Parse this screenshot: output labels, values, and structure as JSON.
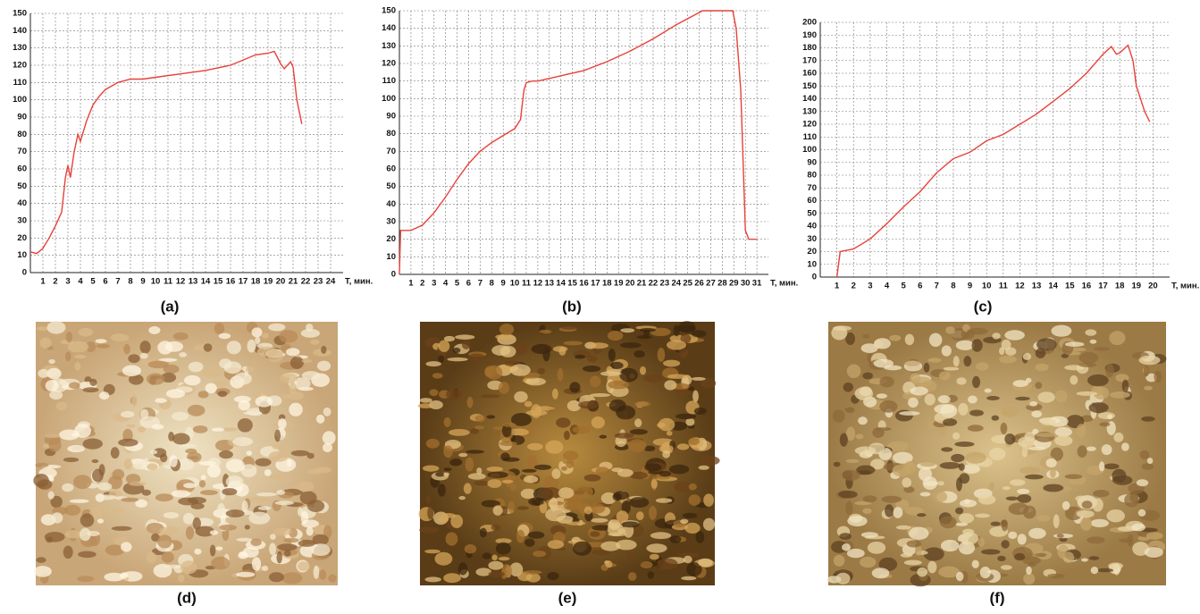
{
  "chart_data": [
    {
      "type": "line",
      "label": "(a)",
      "x_label": "T, мин.",
      "color": "#e8413a",
      "grid": true,
      "x": [
        0,
        0.5,
        1,
        1.5,
        2,
        2.5,
        2.8,
        3,
        3.2,
        3.5,
        3.8,
        4,
        4.5,
        5,
        5.5,
        6,
        7,
        8,
        9,
        10,
        12,
        14,
        16,
        18,
        19,
        19.5,
        20,
        20.3,
        20.8,
        21,
        21.3,
        21.7
      ],
      "values": [
        12,
        11,
        14,
        20,
        27,
        35,
        55,
        62,
        55,
        70,
        80,
        76,
        88,
        97,
        102,
        106,
        110,
        112,
        112,
        113,
        115,
        117,
        120,
        126,
        127,
        128,
        121,
        118,
        122,
        119,
        100,
        86
      ],
      "xlim": [
        0,
        25
      ],
      "xticks": [
        1,
        2,
        3,
        4,
        5,
        6,
        7,
        8,
        9,
        10,
        11,
        12,
        13,
        14,
        15,
        16,
        17,
        18,
        19,
        20,
        21,
        22,
        23,
        24
      ],
      "ylim": [
        0,
        150
      ],
      "yticks": [
        0,
        10,
        20,
        30,
        40,
        50,
        60,
        70,
        80,
        90,
        100,
        110,
        120,
        130,
        140,
        150
      ]
    },
    {
      "type": "line",
      "label": "(b)",
      "x_label": "T, мин.",
      "color": "#e8413a",
      "grid": true,
      "x": [
        0,
        0.1,
        1,
        2,
        3,
        4,
        5,
        6,
        7,
        8,
        9,
        10,
        10.5,
        10.8,
        11,
        11.5,
        12,
        14,
        16,
        18,
        20,
        22,
        24,
        26.3,
        28.9,
        29.2,
        29.6,
        30,
        30.3,
        31
      ],
      "values": [
        0,
        25,
        25,
        28,
        35,
        44,
        54,
        63,
        70,
        75,
        79,
        83,
        88,
        105,
        109,
        110,
        110,
        113,
        116,
        121,
        127,
        134,
        142,
        150,
        150,
        140,
        105,
        25,
        20,
        20
      ],
      "xlim": [
        0,
        32
      ],
      "xticks": [
        1,
        2,
        3,
        4,
        5,
        6,
        7,
        8,
        9,
        10,
        11,
        12,
        13,
        14,
        15,
        16,
        17,
        18,
        19,
        20,
        21,
        22,
        23,
        24,
        25,
        26,
        27,
        28,
        29,
        30,
        31
      ],
      "ylim": [
        0,
        150
      ],
      "yticks": [
        0,
        10,
        20,
        30,
        40,
        50,
        60,
        70,
        80,
        90,
        100,
        110,
        120,
        130,
        140,
        150
      ]
    },
    {
      "type": "line",
      "label": "(c)",
      "x_label": "T, мин.",
      "color": "#e8413a",
      "grid": true,
      "x": [
        1,
        1.2,
        2,
        3,
        4,
        5,
        6,
        7,
        8,
        9,
        10,
        11,
        12,
        13,
        14,
        15,
        16,
        17,
        17.5,
        17.8,
        18,
        18.5,
        18.8,
        19,
        19.5,
        19.8
      ],
      "values": [
        0,
        20,
        22,
        30,
        42,
        55,
        67,
        82,
        93,
        98,
        107,
        112,
        120,
        128,
        138,
        148,
        160,
        175,
        181,
        175,
        176,
        182,
        170,
        150,
        130,
        122
      ],
      "xlim": [
        0,
        21
      ],
      "xticks": [
        1,
        2,
        3,
        4,
        5,
        6,
        7,
        8,
        9,
        10,
        11,
        12,
        13,
        14,
        15,
        16,
        17,
        18,
        19,
        20
      ],
      "ylim": [
        0,
        200
      ],
      "yticks": [
        0,
        10,
        20,
        30,
        40,
        50,
        60,
        70,
        80,
        90,
        100,
        110,
        120,
        130,
        140,
        150,
        160,
        170,
        180,
        190,
        200
      ]
    }
  ],
  "photos": [
    {
      "label": "(d)"
    },
    {
      "label": "(e)"
    },
    {
      "label": "(f)"
    }
  ]
}
